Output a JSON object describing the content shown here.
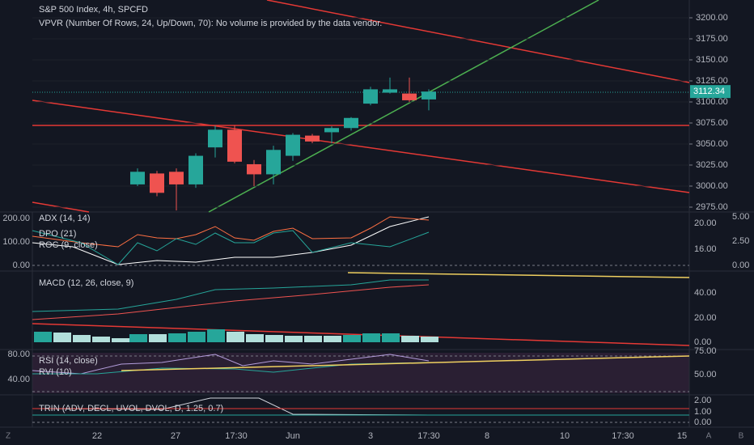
{
  "header": {
    "title": "S&P 500 Index, 4h, SPCFD",
    "subtitle": "VPVR (Number Of Rows, 24, Up/Down, 70): No volume is provided by the data vendor."
  },
  "price_pane": {
    "ylim": [
      2965,
      3215
    ],
    "yticks": [
      {
        "value": 2975,
        "label": "2975.00"
      },
      {
        "value": 3000,
        "label": "3000.00"
      },
      {
        "value": 3025,
        "label": "3025.00"
      },
      {
        "value": 3050,
        "label": "3050.00"
      },
      {
        "value": 3075,
        "label": "3075.00"
      },
      {
        "value": 3100,
        "label": "3100.00"
      },
      {
        "value": 3125,
        "label": "3125.00"
      },
      {
        "value": 3150,
        "label": "3150.00"
      },
      {
        "value": 3175,
        "label": "3175.00"
      },
      {
        "value": 3200,
        "label": "3200.00"
      }
    ],
    "last_price": {
      "value": 3112.34,
      "label": "3112.34"
    },
    "candles": [
      {
        "open": 3002,
        "high": 3021,
        "low": 3000,
        "close": 3017
      },
      {
        "open": 3015,
        "high": 3018,
        "low": 2988,
        "close": 2992
      },
      {
        "open": 3017,
        "high": 3021,
        "low": 2971,
        "close": 3002
      },
      {
        "open": 3002,
        "high": 3039,
        "low": 2998,
        "close": 3036
      },
      {
        "open": 3046,
        "high": 3072,
        "low": 3034,
        "close": 3067
      },
      {
        "open": 3067,
        "high": 3072,
        "low": 3027,
        "close": 3029
      },
      {
        "open": 3026,
        "high": 3031,
        "low": 3000,
        "close": 3014
      },
      {
        "open": 3014,
        "high": 3048,
        "low": 3002,
        "close": 3043
      },
      {
        "open": 3036,
        "high": 3063,
        "low": 3030,
        "close": 3061
      },
      {
        "open": 3060,
        "high": 3062,
        "low": 3051,
        "close": 3053
      },
      {
        "open": 3064,
        "high": 3071,
        "low": 3051,
        "close": 3069
      },
      {
        "open": 3069,
        "high": 3082,
        "low": 3066,
        "close": 3081
      },
      {
        "open": 3098,
        "high": 3118,
        "low": 3096,
        "close": 3115
      },
      {
        "open": 3111,
        "high": 3129,
        "low": 3110,
        "close": 3115
      },
      {
        "open": 3110,
        "high": 3129,
        "low": 3100,
        "close": 3102
      },
      {
        "open": 3103,
        "high": 3115,
        "low": 3090,
        "close": 3112.34
      }
    ]
  },
  "adx_pane": {
    "legend": [
      "ADX (14, 14)",
      "DPO (21)",
      "ROC (9, close)"
    ],
    "left_ticks": [
      "200.00",
      "100.00",
      "0.00"
    ],
    "mid_ticks": [
      "20.00",
      "16.00"
    ],
    "right_ticks": [
      "5.00",
      "2.50",
      "0.00"
    ]
  },
  "macd_pane": {
    "legend": [
      "MACD (12, 26, close, 9)"
    ],
    "right_ticks": [
      "40.00",
      "20.00",
      "0.00"
    ]
  },
  "rsi_pane": {
    "legend": [
      "RSI (14, close)",
      "RVI (10)"
    ],
    "left_ticks": [
      "80.00",
      "40.00"
    ],
    "right_ticks": [
      "75.00",
      "50.00"
    ]
  },
  "trin_pane": {
    "legend": [
      "TRIN (ADV, DECL, UVOL, DVOL, D, 1.25, 0.7)"
    ],
    "right_ticks": [
      "2.00",
      "1.00",
      "0.00"
    ]
  },
  "time_axis": {
    "labels": [
      "22",
      "27",
      "17:30",
      "Jun",
      "3",
      "17:30",
      "8",
      "10",
      "17:30",
      "15"
    ]
  },
  "corner_buttons": [
    "Z",
    "A",
    "B"
  ]
}
